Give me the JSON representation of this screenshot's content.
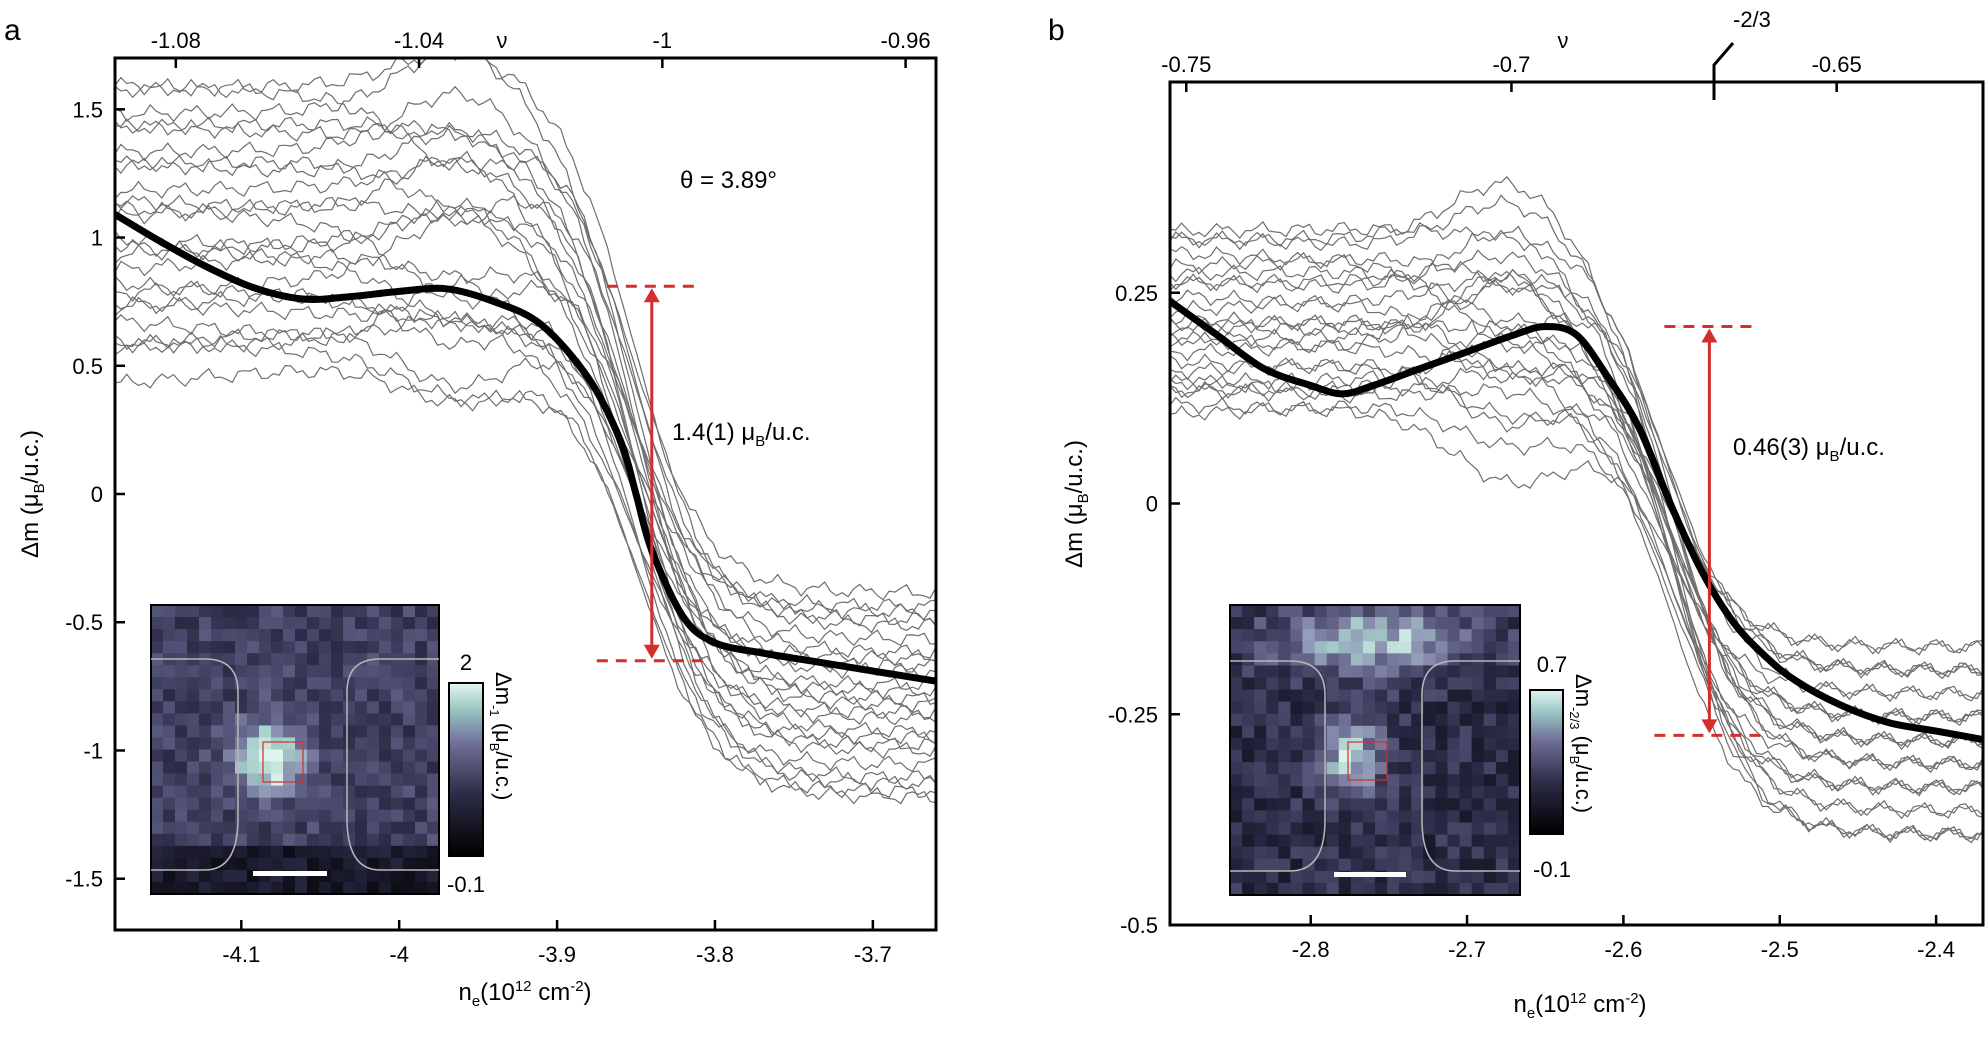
{
  "figure": {
    "panels": [
      {
        "label": "a",
        "top_axis_label": "ν",
        "top_ticks": [
          "-1.08",
          "-1.04",
          "-1",
          "-0.96"
        ],
        "annotation": "θ = 3.89°",
        "step_label": "1.4(1) μ",
        "step_sub": "B",
        "step_unit": "/u.c.",
        "y_label_main": "Δm (μ",
        "y_label_sub": "B",
        "y_label_end": "/u.c.)",
        "x_label_main": "n",
        "x_label_sub": "e",
        "x_label_mid": "(10",
        "x_label_sup1": "12",
        "x_label_unit": " cm",
        "x_label_sup2": "-2",
        "x_label_end": ")",
        "inset": {
          "cbar_max": "2",
          "cbar_min": "-0.1",
          "cbar_label_main": "Δm",
          "cbar_label_sub": "-1",
          "cbar_label_end": " (μ",
          "cbar_label_sub2": "B",
          "cbar_label_tail": "/u.c.)"
        }
      },
      {
        "label": "b",
        "top_axis_label": "ν",
        "top_ticks": [
          "-0.75",
          "-0.7",
          "-0.65"
        ],
        "special_tick": "-2/3",
        "step_label": "0.46(3) μ",
        "step_sub": "B",
        "step_unit": "/u.c.",
        "y_label_main": "Δm (μ",
        "y_label_sub": "B",
        "y_label_end": "/u.c.)",
        "x_label_main": "n",
        "x_label_sub": "e",
        "x_label_mid": "(10",
        "x_label_sup1": "12",
        "x_label_unit": " cm",
        "x_label_sup2": "-2",
        "x_label_end": ")",
        "inset": {
          "cbar_max": "0.7",
          "cbar_min": "-0.1",
          "cbar_label_main": "Δm",
          "cbar_label_sub": "-2/3",
          "cbar_label_end": " (μ",
          "cbar_label_sub2": "B",
          "cbar_label_tail": "/u.c.)"
        }
      }
    ]
  },
  "chart_data": [
    {
      "type": "line",
      "panel": "a",
      "xlabel": "n_e (10^12 cm^-2)",
      "ylabel": "Δm (μ_B/u.c.)",
      "xlim": [
        -4.18,
        -3.66
      ],
      "ylim": [
        -1.7,
        1.7
      ],
      "xticks": [
        -4.1,
        -4.0,
        -3.9,
        -3.8,
        -3.7
      ],
      "xtick_labels": [
        "-4.1",
        "-4",
        "-3.9",
        "-3.8",
        "-3.7"
      ],
      "yticks": [
        1.5,
        1,
        0.5,
        0,
        -0.5,
        -1,
        -1.5
      ],
      "ytick_labels": [
        "1.5",
        "1",
        "0.5",
        "0",
        "-0.5",
        "-1",
        "-1.5"
      ],
      "top_xlim": [
        -1.09,
        -0.955
      ],
      "top_ticks": [
        -1.08,
        -1.04,
        -1.0,
        -0.96
      ],
      "main_series": {
        "name": "average",
        "x": [
          -4.18,
          -4.15,
          -4.12,
          -4.09,
          -4.06,
          -4.03,
          -4.0,
          -3.97,
          -3.94,
          -3.91,
          -3.88,
          -3.86,
          -3.85,
          -3.84,
          -3.82,
          -3.8,
          -3.77,
          -3.74,
          -3.71,
          -3.68,
          -3.66
        ],
        "y": [
          1.09,
          0.98,
          0.88,
          0.8,
          0.76,
          0.77,
          0.79,
          0.8,
          0.75,
          0.66,
          0.45,
          0.21,
          0.0,
          -0.22,
          -0.48,
          -0.58,
          -0.62,
          -0.65,
          -0.68,
          -0.71,
          -0.73
        ]
      },
      "thin_series_count": 25,
      "thin_series_range": {
        "left_min": 0.45,
        "left_max": 1.6,
        "right_min": -1.2,
        "right_max": -0.35
      },
      "crossing_point": {
        "x": -3.85,
        "y": 0.0
      },
      "step_bar": {
        "x": -3.84,
        "y_top": 0.81,
        "y_bottom": -0.65
      }
    },
    {
      "type": "line",
      "panel": "b",
      "xlabel": "n_e (10^12 cm^-2)",
      "ylabel": "Δm (μ_B/u.c.)",
      "xlim": [
        -2.89,
        -2.37
      ],
      "ylim": [
        -0.5,
        0.5
      ],
      "xticks": [
        -2.8,
        -2.7,
        -2.6,
        -2.5,
        -2.4
      ],
      "xtick_labels": [
        "-2.8",
        "-2.7",
        "-2.6",
        "-2.5",
        "-2.4"
      ],
      "yticks": [
        0.25,
        0,
        -0.25,
        -0.5
      ],
      "ytick_labels": [
        "0.25",
        "0",
        "-0.25",
        "-0.5"
      ],
      "top_xlim": [
        -0.7525,
        -0.6275
      ],
      "top_ticks": [
        -0.75,
        -0.7,
        -0.65
      ],
      "special_top_tick": -0.6667,
      "main_series": {
        "name": "average",
        "x": [
          -2.89,
          -2.86,
          -2.83,
          -2.8,
          -2.78,
          -2.76,
          -2.73,
          -2.7,
          -2.67,
          -2.65,
          -2.63,
          -2.61,
          -2.59,
          -2.57,
          -2.55,
          -2.53,
          -2.51,
          -2.49,
          -2.46,
          -2.43,
          -2.4,
          -2.37
        ],
        "y": [
          0.24,
          0.2,
          0.16,
          0.14,
          0.13,
          0.14,
          0.16,
          0.18,
          0.2,
          0.21,
          0.2,
          0.15,
          0.09,
          0.0,
          -0.08,
          -0.14,
          -0.18,
          -0.21,
          -0.24,
          -0.26,
          -0.27,
          -0.28
        ]
      },
      "thin_series_count": 24,
      "thin_series_range": {
        "left_min": 0.1,
        "left_max": 0.33,
        "right_min": -0.41,
        "right_max": -0.16
      },
      "crossing_point": {
        "x": -2.57,
        "y": 0.0
      },
      "step_bar": {
        "x": -2.545,
        "y_top": 0.21,
        "y_bottom": -0.275
      }
    }
  ],
  "colors": {
    "accent": "#d32f2f",
    "main_line": "#000000",
    "thin_line": "#6e6e6e"
  }
}
